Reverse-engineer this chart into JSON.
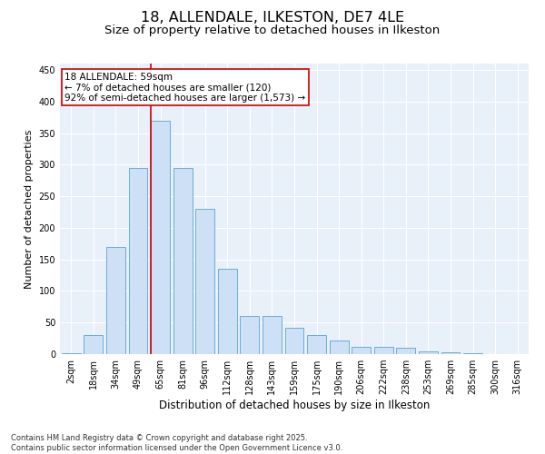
{
  "title": "18, ALLENDALE, ILKESTON, DE7 4LE",
  "subtitle": "Size of property relative to detached houses in Ilkeston",
  "xlabel": "Distribution of detached houses by size in Ilkeston",
  "ylabel": "Number of detached properties",
  "categories": [
    "2sqm",
    "18sqm",
    "34sqm",
    "49sqm",
    "65sqm",
    "81sqm",
    "96sqm",
    "112sqm",
    "128sqm",
    "143sqm",
    "159sqm",
    "175sqm",
    "190sqm",
    "206sqm",
    "222sqm",
    "238sqm",
    "253sqm",
    "269sqm",
    "285sqm",
    "300sqm",
    "316sqm"
  ],
  "values": [
    2,
    30,
    170,
    295,
    370,
    295,
    230,
    135,
    60,
    60,
    42,
    30,
    22,
    12,
    12,
    10,
    5,
    3,
    2,
    0,
    0
  ],
  "bar_color": "#cde0f5",
  "bar_edge_color": "#6aaed6",
  "vline_color": "#cc0000",
  "annotation_text": "18 ALLENDALE: 59sqm\n← 7% of detached houses are smaller (120)\n92% of semi-detached houses are larger (1,573) →",
  "annotation_box_color": "#ffffff",
  "annotation_box_edge_color": "#cc0000",
  "ylim": [
    0,
    460
  ],
  "yticks": [
    0,
    50,
    100,
    150,
    200,
    250,
    300,
    350,
    400,
    450
  ],
  "bg_color": "#e8f0fa",
  "grid_color": "#ffffff",
  "footer": "Contains HM Land Registry data © Crown copyright and database right 2025.\nContains public sector information licensed under the Open Government Licence v3.0.",
  "title_fontsize": 11.5,
  "subtitle_fontsize": 9.5,
  "xlabel_fontsize": 8.5,
  "ylabel_fontsize": 8,
  "tick_fontsize": 7,
  "annotation_fontsize": 7.5,
  "footer_fontsize": 6
}
